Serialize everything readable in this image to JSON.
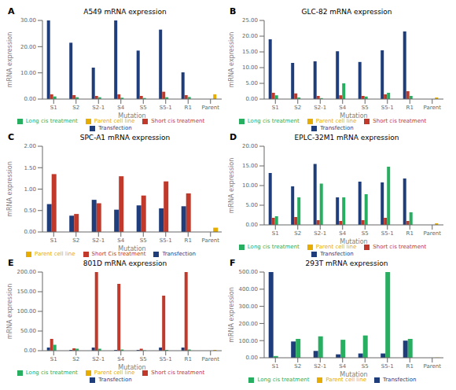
{
  "chart_data": [
    {
      "type": "bar",
      "title": "A549 mRNA expression",
      "annotations": [
        "A"
      ],
      "x_label": "Mutation",
      "y_label": "mRNA expression",
      "legend": "bottom",
      "categories": [
        "S1",
        "S2",
        "S2-1",
        "S4",
        "S5",
        "S5-1",
        "R1",
        "Parent"
      ],
      "series": [
        {
          "name": "Transfection",
          "color": "#1f3d7a",
          "values": [
            30.0,
            21.5,
            12.0,
            30.0,
            18.5,
            26.5,
            10.2,
            0
          ]
        },
        {
          "name": "Short cis treatment",
          "color": "#c0392b",
          "values": [
            1.8,
            1.5,
            1.2,
            1.8,
            1.2,
            2.8,
            1.5,
            0
          ]
        },
        {
          "name": "Long cis treatment",
          "color": "#27ae60",
          "values": [
            1.0,
            0.7,
            0.7,
            0.5,
            0.4,
            0.7,
            0.8,
            0
          ]
        },
        {
          "name": "Parent cell line",
          "color": "#e6ac00",
          "values": [
            0,
            0,
            0,
            0,
            0,
            0,
            0,
            1.8
          ]
        }
      ],
      "ylim": [
        0,
        30
      ],
      "yticks": [
        {
          "value": 0,
          "label": "0.00"
        },
        {
          "value": 10,
          "label": "10.00"
        },
        {
          "value": 20,
          "label": "20.00"
        },
        {
          "value": 30,
          "label": "30.00"
        }
      ]
    },
    {
      "type": "bar",
      "title": "GLC-82 mRNA expression",
      "annotations": [
        "B"
      ],
      "x_label": "Mutation",
      "y_label": "mRNA expression",
      "legend": "bottom",
      "categories": [
        "S1",
        "S2",
        "S2-1",
        "S4",
        "S5",
        "S5-1",
        "R1",
        "Parent"
      ],
      "series": [
        {
          "name": "Transfection",
          "color": "#1f3d7a",
          "values": [
            19.0,
            11.5,
            12.0,
            15.2,
            11.8,
            15.5,
            21.5,
            0
          ]
        },
        {
          "name": "Short cis treatment",
          "color": "#c0392b",
          "values": [
            2.0,
            1.8,
            1.0,
            1.2,
            1.0,
            1.5,
            2.5,
            0
          ]
        },
        {
          "name": "Long cis treatment",
          "color": "#27ae60",
          "values": [
            1.2,
            0.5,
            0.3,
            5.0,
            0.8,
            2.0,
            1.0,
            0
          ]
        },
        {
          "name": "Parent cell line",
          "color": "#e6ac00",
          "values": [
            0,
            0,
            0,
            0,
            0,
            0,
            0,
            0.5
          ]
        }
      ],
      "ylim": [
        0,
        25
      ],
      "yticks": [
        {
          "value": 0,
          "label": "0.00"
        },
        {
          "value": 5,
          "label": "5.00"
        },
        {
          "value": 10,
          "label": "10.00"
        },
        {
          "value": 15,
          "label": "15.00"
        },
        {
          "value": 20,
          "label": "20.00"
        },
        {
          "value": 25,
          "label": "25.00"
        }
      ]
    },
    {
      "type": "bar",
      "title": "SPC-A1 mRNA expression",
      "annotations": [
        "C"
      ],
      "x_label": "Mutation",
      "y_label": "mRNA expression",
      "legend": "bottom",
      "categories": [
        "S1",
        "S2",
        "S2-1",
        "S4",
        "S5",
        "S5-1",
        "R1",
        "Parent"
      ],
      "series": [
        {
          "name": "Transfection",
          "color": "#1f3d7a",
          "values": [
            0.65,
            0.38,
            0.75,
            0.52,
            0.62,
            0.55,
            0.6,
            0
          ]
        },
        {
          "name": "Short Cis treatment",
          "color": "#c0392b",
          "values": [
            1.35,
            0.42,
            0.67,
            1.3,
            0.85,
            1.18,
            0.9,
            0
          ]
        },
        {
          "name": "Parent cell line",
          "color": "#e6ac00",
          "values": [
            0,
            0,
            0,
            0,
            0,
            0,
            0,
            0.1
          ]
        }
      ],
      "ylim": [
        0,
        2.0
      ],
      "yticks": [
        {
          "value": 0,
          "label": "0.00"
        },
        {
          "value": 0.5,
          "label": "0.50"
        },
        {
          "value": 1,
          "label": "1.00"
        },
        {
          "value": 1.5,
          "label": "1.50"
        },
        {
          "value": 2,
          "label": "2.00"
        }
      ]
    },
    {
      "type": "bar",
      "title": "EPLC-32M1 mRNA expression",
      "annotations": [
        "D"
      ],
      "x_label": "Mutation",
      "y_label": "mRNA expression",
      "legend": "bottom",
      "categories": [
        "S1",
        "S2",
        "S2-1",
        "S4",
        "S5",
        "S5-1",
        "R1",
        "Parent"
      ],
      "series": [
        {
          "name": "Transfection",
          "color": "#1f3d7a",
          "values": [
            13.2,
            9.8,
            15.5,
            7.0,
            11.0,
            10.8,
            11.8,
            0
          ]
        },
        {
          "name": "Short cis treatment",
          "color": "#c0392b",
          "values": [
            1.8,
            2.0,
            1.2,
            1.0,
            1.2,
            1.8,
            1.0,
            0
          ]
        },
        {
          "name": "Long cis treatment",
          "color": "#27ae60",
          "values": [
            2.2,
            7.0,
            10.5,
            7.0,
            7.8,
            14.8,
            3.2,
            0
          ]
        },
        {
          "name": "Parent cell line",
          "color": "#e6ac00",
          "values": [
            0,
            0,
            0,
            0,
            0,
            0,
            0,
            0.4
          ]
        }
      ],
      "ylim": [
        0,
        20
      ],
      "yticks": [
        {
          "value": 0,
          "label": "0.00"
        },
        {
          "value": 5,
          "label": "5.00"
        },
        {
          "value": 10,
          "label": "10.00"
        },
        {
          "value": 15,
          "label": "15.00"
        },
        {
          "value": 20,
          "label": "20.00"
        }
      ]
    },
    {
      "type": "bar",
      "title": "801D mRNA expression",
      "annotations": [
        "E"
      ],
      "x_label": "Mutation",
      "y_label": "mRNA expression",
      "legend": "bottom",
      "categories": [
        "S1",
        "S2",
        "S2-1",
        "S4",
        "S5",
        "S5-1",
        "R1",
        "Parent"
      ],
      "series": [
        {
          "name": "Transfection",
          "color": "#1f3d7a",
          "values": [
            8.0,
            2.0,
            8.0,
            2.0,
            2.0,
            8.0,
            8.0,
            0
          ]
        },
        {
          "name": "Short cis treatment",
          "color": "#c0392b",
          "values": [
            30.0,
            6.0,
            200.0,
            170.0,
            5.0,
            140.0,
            200.0,
            0
          ]
        },
        {
          "name": "Long cis treatment",
          "color": "#27ae60",
          "values": [
            15.0,
            5.0,
            5.0,
            3.0,
            1.0,
            2.0,
            3.0,
            0
          ]
        },
        {
          "name": "Parent cell line",
          "color": "#e6ac00",
          "values": [
            0,
            0,
            0,
            0,
            0,
            0,
            0,
            2.0
          ]
        }
      ],
      "ylim": [
        0,
        200
      ],
      "yticks": [
        {
          "value": 0,
          "label": "0.00"
        },
        {
          "value": 50,
          "label": "50.00"
        },
        {
          "value": 100,
          "label": "100.00"
        },
        {
          "value": 150,
          "label": "150.00"
        },
        {
          "value": 200,
          "label": "200.00"
        }
      ]
    },
    {
      "type": "bar",
      "title": "293T mRNA expression",
      "annotations": [
        "F"
      ],
      "x_label": "Mutation",
      "y_label": "mRNA expression",
      "legend": "bottom",
      "categories": [
        "S1",
        "S2",
        "S2-1",
        "S4",
        "S5",
        "S5-1",
        "R1",
        "Parent"
      ],
      "series": [
        {
          "name": "Transfection",
          "color": "#1f3d7a",
          "values": [
            500.0,
            95.0,
            40.0,
            20.0,
            25.0,
            25.0,
            100.0,
            0
          ]
        },
        {
          "name": "Long cis treatment",
          "color": "#27ae60",
          "values": [
            10.0,
            110.0,
            125.0,
            105.0,
            130.0,
            500.0,
            110.0,
            0
          ]
        },
        {
          "name": "Parent cell line",
          "color": "#e6ac00",
          "values": [
            0,
            0,
            0,
            0,
            0,
            0,
            0,
            1.0
          ]
        }
      ],
      "ylim": [
        0,
        500
      ],
      "yticks": [
        {
          "value": 0,
          "label": "0.00"
        },
        {
          "value": 100,
          "label": "100.00"
        },
        {
          "value": 200,
          "label": "200.00"
        },
        {
          "value": 300,
          "label": "300.00"
        },
        {
          "value": 400,
          "label": "400.00"
        },
        {
          "value": 500,
          "label": "500.00"
        }
      ]
    }
  ]
}
